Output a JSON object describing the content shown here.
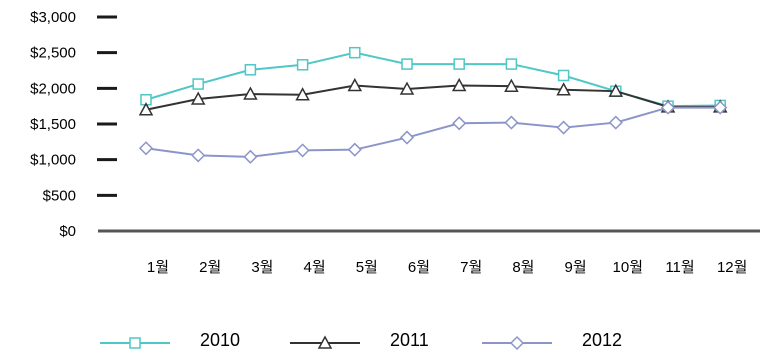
{
  "chart_data": {
    "type": "line",
    "title": "",
    "xlabel": "",
    "ylabel": "",
    "categories": [
      "1월",
      "2월",
      "3월",
      "4월",
      "5월",
      "6월",
      "7월",
      "8월",
      "9월",
      "10월",
      "11월",
      "12월"
    ],
    "y_ticks": [
      "$0",
      "$500",
      "$1,000",
      "$1,500",
      "$2,000",
      "$2,500",
      "$3,000"
    ],
    "ylim": [
      0,
      3000
    ],
    "grid": false,
    "legend_position": "bottom",
    "series": [
      {
        "name": "2010",
        "color": "#4fc7c7",
        "marker": "square",
        "values": [
          1840,
          2060,
          2260,
          2330,
          2500,
          2340,
          2340,
          2340,
          2180,
          1960,
          1750,
          1760
        ]
      },
      {
        "name": "2011",
        "color": "#333333",
        "marker": "triangle",
        "values": [
          1700,
          1850,
          1920,
          1910,
          2040,
          1990,
          2040,
          2030,
          1980,
          1960,
          1740,
          1740
        ]
      },
      {
        "name": "2012",
        "color": "#8c95c9",
        "marker": "diamond",
        "values": [
          1160,
          1060,
          1040,
          1130,
          1140,
          1310,
          1510,
          1520,
          1450,
          1520,
          1730,
          1730
        ]
      }
    ]
  }
}
